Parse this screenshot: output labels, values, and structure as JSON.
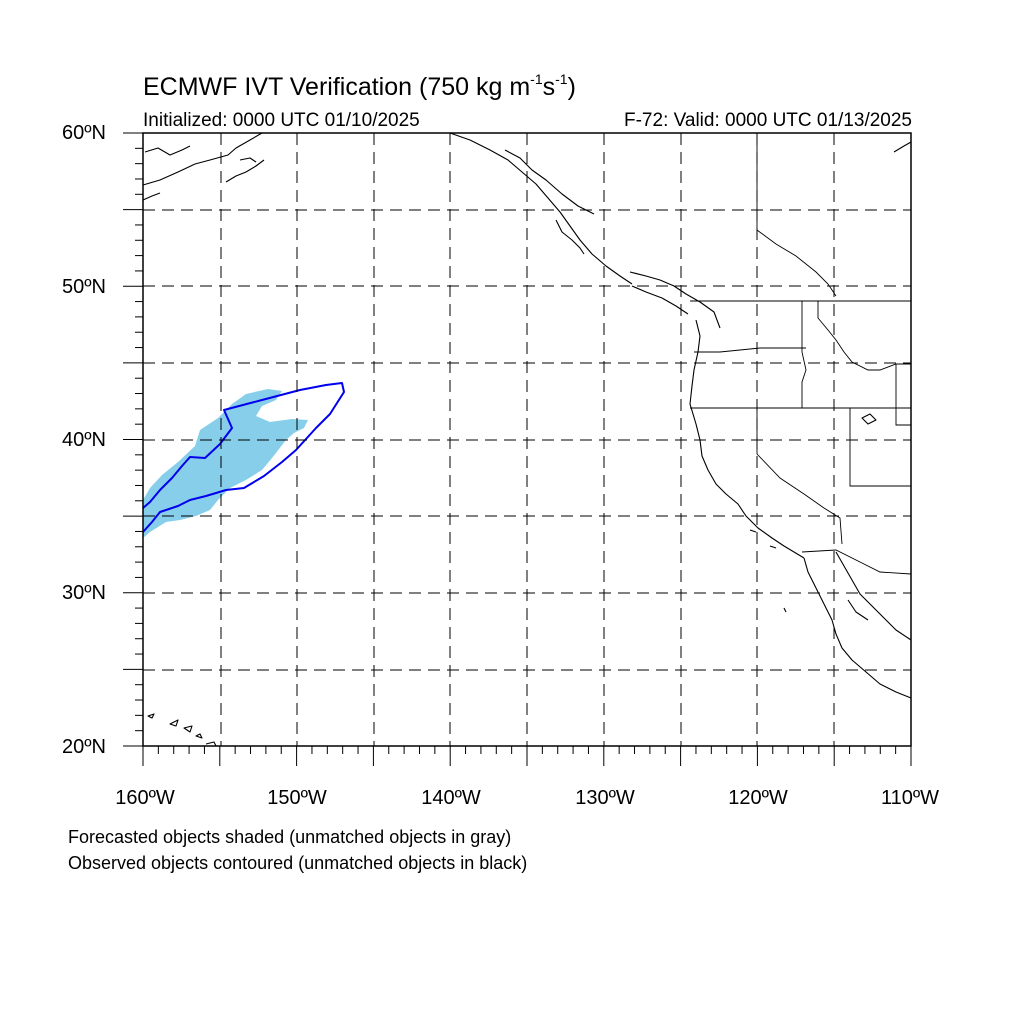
{
  "title": {
    "main": "ECMWF IVT Verification (750 kg m",
    "exp1": "-1",
    "mid": "s",
    "exp2": "-1",
    "end": ")"
  },
  "subtitle": {
    "initialized": "Initialized: 0000 UTC 01/10/2025",
    "valid": "F-72: Valid: 0000 UTC 01/13/2025"
  },
  "axes": {
    "lat_labels": [
      "60ºN",
      "50ºN",
      "40ºN",
      "30ºN",
      "20ºN"
    ],
    "lon_labels": [
      "160ºW",
      "150ºW",
      "140ºW",
      "130ºW",
      "120ºW",
      "110ºW"
    ],
    "lat_range": [
      20,
      60
    ],
    "lon_range": [
      -160,
      -110
    ],
    "grid_spacing_deg": 5,
    "grid": "dashed"
  },
  "footer": {
    "line1": "Forecasted objects shaded (unmatched objects in gray)",
    "line2": "Observed objects contoured (unmatched objects in black)"
  },
  "colors": {
    "forecast_fill": "#87ceeb",
    "observed_contour": "#0000ee",
    "coastline": "#000000",
    "grid": "#000000"
  }
}
